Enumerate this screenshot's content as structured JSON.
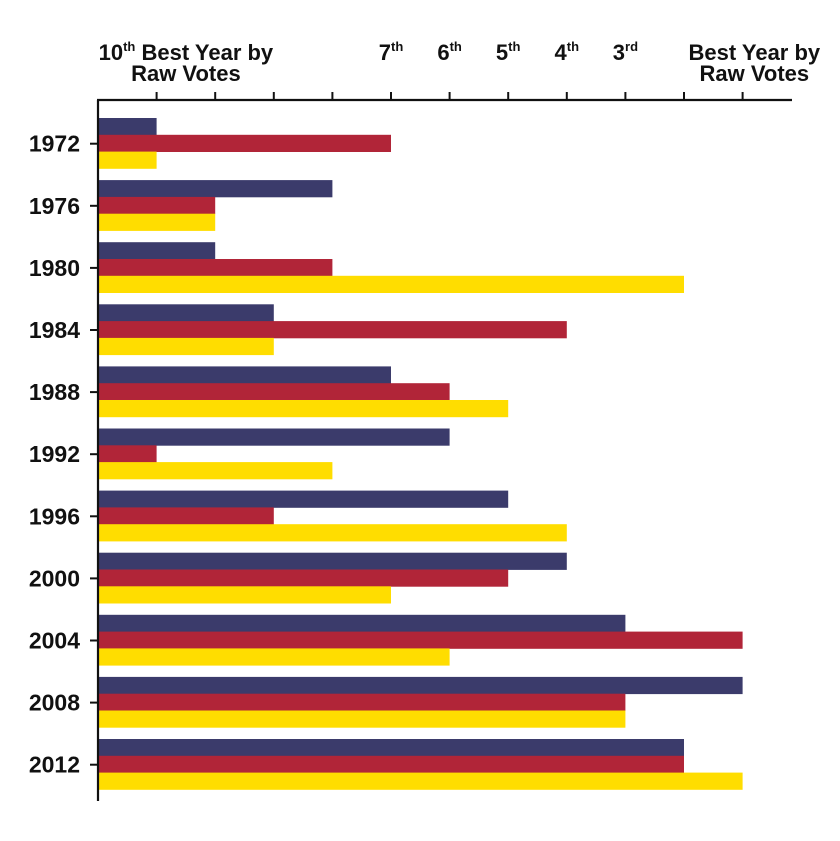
{
  "chart_data": {
    "type": "bar",
    "orientation": "horizontal",
    "categories": [
      "1972",
      "1976",
      "1980",
      "1984",
      "1988",
      "1992",
      "1996",
      "2000",
      "2004",
      "2008",
      "2012"
    ],
    "series": [
      {
        "color": "#3b3b6b",
        "values": [
          1,
          4,
          2,
          3,
          5,
          6,
          7,
          8,
          9,
          11,
          10
        ]
      },
      {
        "color": "#b12538",
        "values": [
          5,
          2,
          4,
          8,
          6,
          1,
          3,
          7,
          11,
          9,
          10
        ]
      },
      {
        "color": "#ffdd00",
        "values": [
          1,
          2,
          10,
          3,
          7,
          4,
          8,
          5,
          6,
          9,
          11
        ]
      }
    ],
    "xlim": [
      0,
      11
    ],
    "xticks": [
      1,
      2,
      3,
      4,
      5,
      6,
      7,
      8,
      9,
      10,
      11
    ],
    "tick_labels": [
      {
        "value": 1.5,
        "lines": [
          {
            "main": "10",
            "sup": "th",
            "rest": " Best Year by"
          },
          {
            "main": "Raw Votes"
          }
        ]
      },
      {
        "value": 5,
        "lines": [
          {
            "main": "7",
            "sup": "th"
          }
        ]
      },
      {
        "value": 6,
        "lines": [
          {
            "main": "6",
            "sup": "th"
          }
        ]
      },
      {
        "value": 7,
        "lines": [
          {
            "main": "5",
            "sup": "th"
          }
        ]
      },
      {
        "value": 8,
        "lines": [
          {
            "main": "4",
            "sup": "th"
          }
        ]
      },
      {
        "value": 9,
        "lines": [
          {
            "main": "3",
            "sup": "rd"
          }
        ]
      },
      {
        "value": 11.2,
        "lines": [
          {
            "main": "Best Year by"
          },
          {
            "main": "Raw Votes"
          }
        ]
      }
    ],
    "grid": false,
    "legend": "none"
  }
}
